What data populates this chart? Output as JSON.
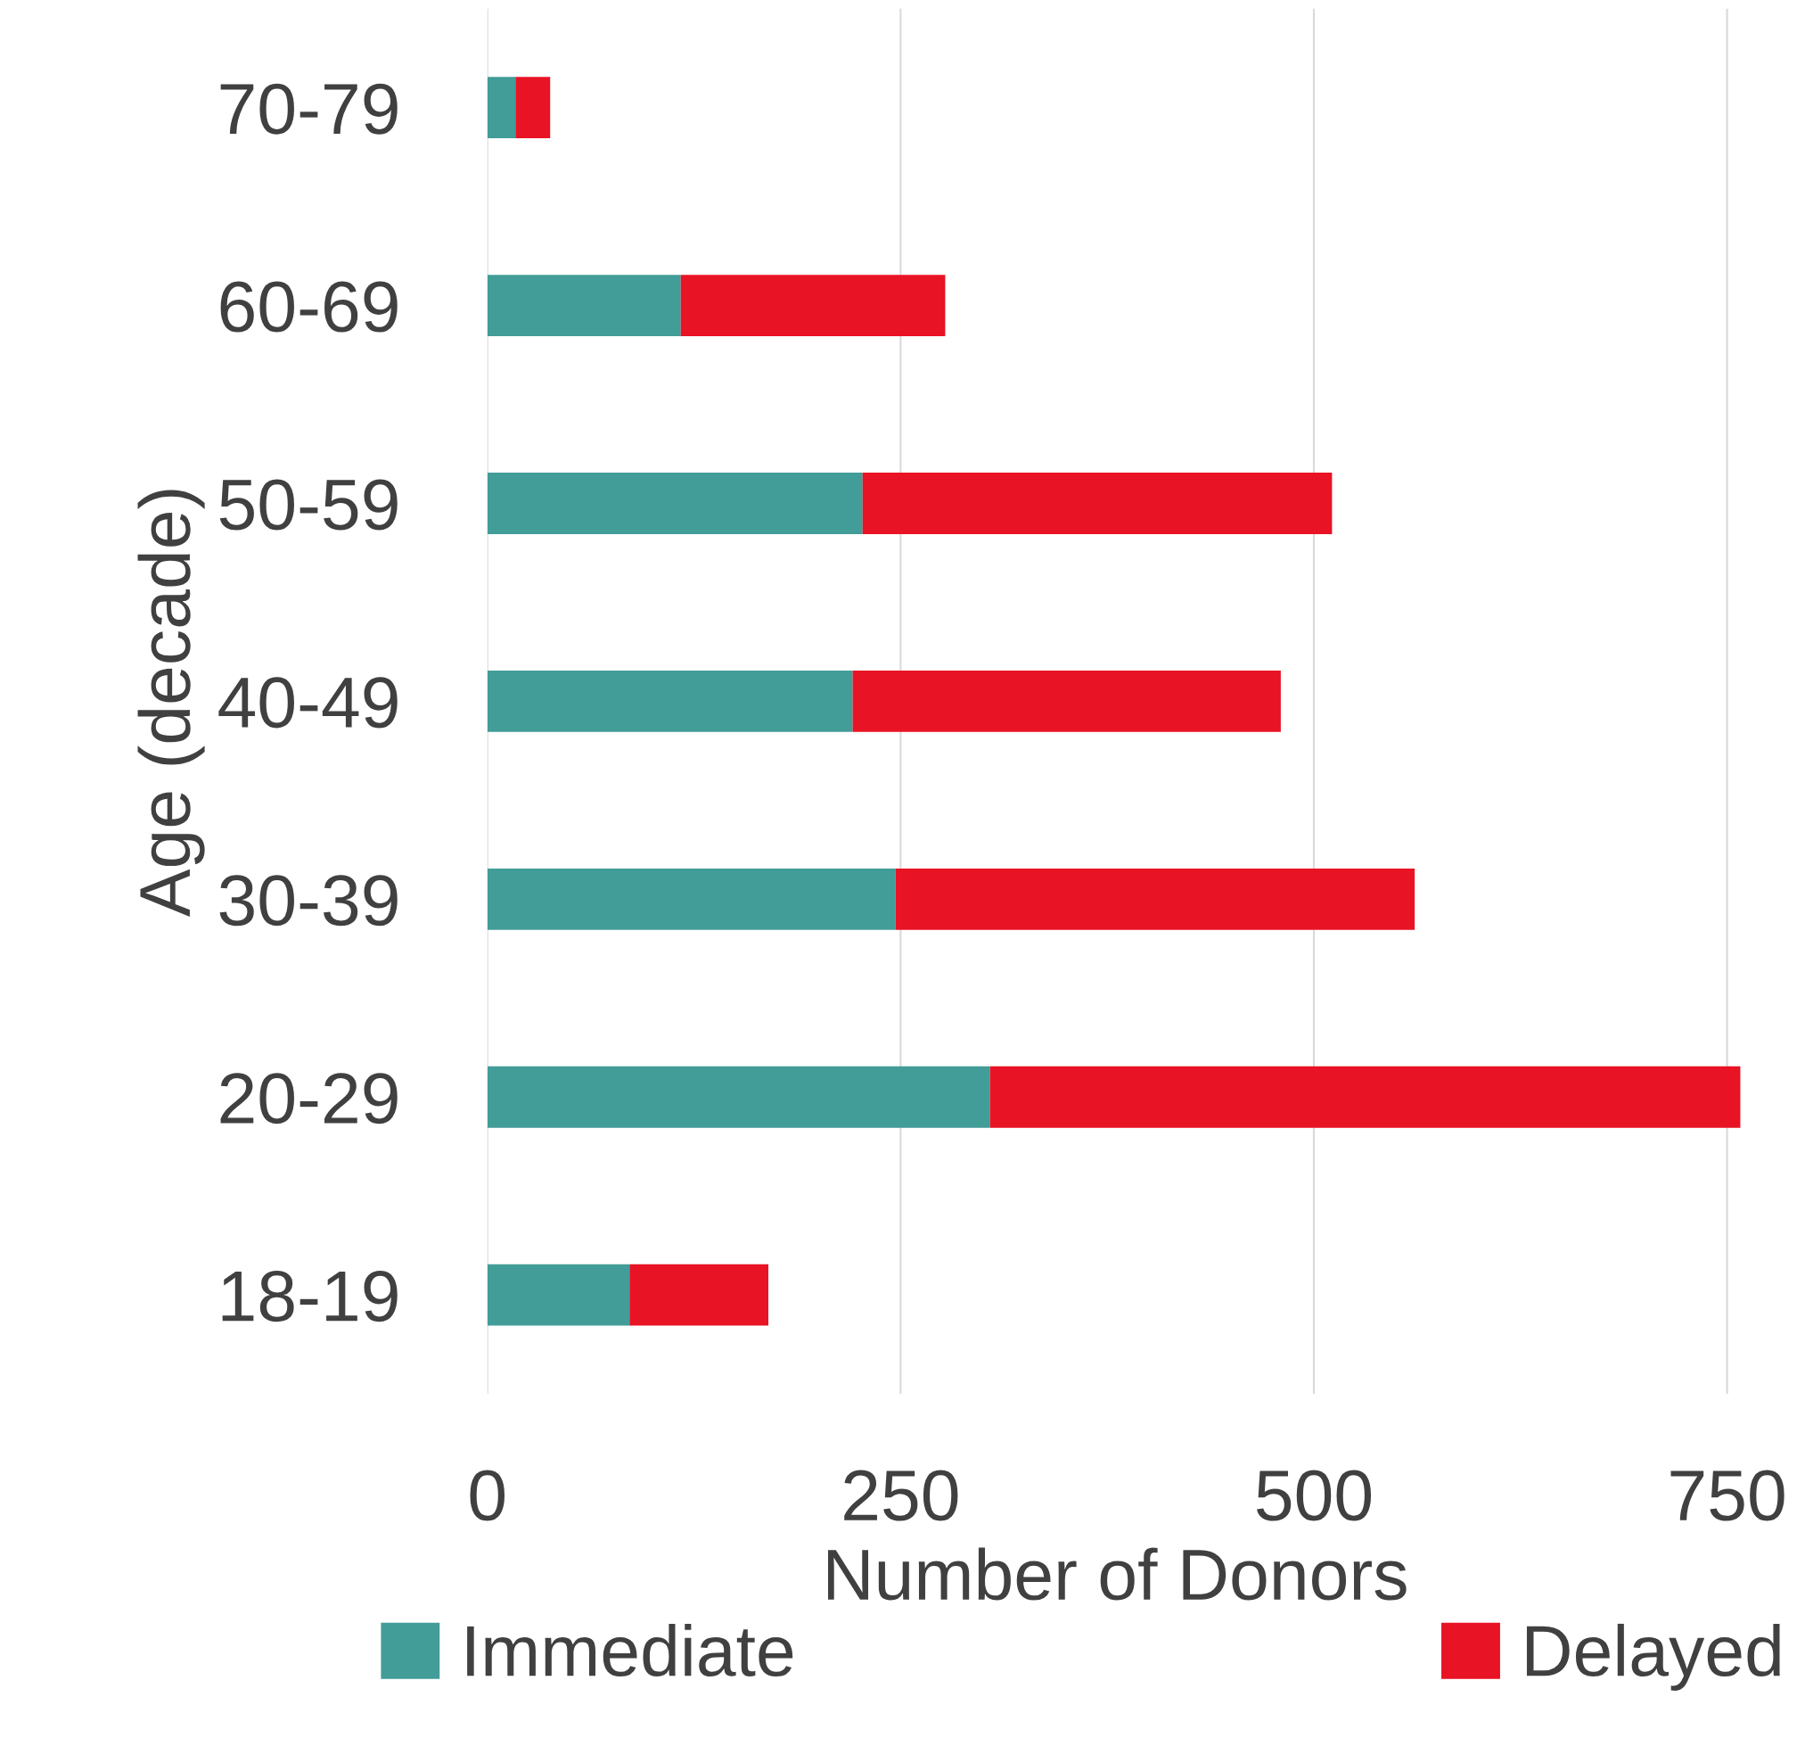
{
  "chart_data": {
    "type": "bar",
    "orientation": "horizontal",
    "stacked": true,
    "xlabel": "Number of Donors",
    "ylabel": "Age (decade)",
    "categories": [
      "70-79",
      "60-69",
      "50-59",
      "40-49",
      "30-39",
      "20-29",
      "18-19"
    ],
    "series": [
      {
        "name": "Immediate",
        "color": "#429c97",
        "values": [
          17,
          117,
          227,
          221,
          247,
          304,
          86
        ]
      },
      {
        "name": "Delayed",
        "color": "#e81324",
        "values": [
          21,
          160,
          284,
          259,
          314,
          454,
          84
        ]
      }
    ],
    "xlim": [
      0,
      760
    ],
    "xticks": [
      0,
      250,
      500,
      750
    ],
    "grid": "x",
    "legend": "bottom"
  }
}
